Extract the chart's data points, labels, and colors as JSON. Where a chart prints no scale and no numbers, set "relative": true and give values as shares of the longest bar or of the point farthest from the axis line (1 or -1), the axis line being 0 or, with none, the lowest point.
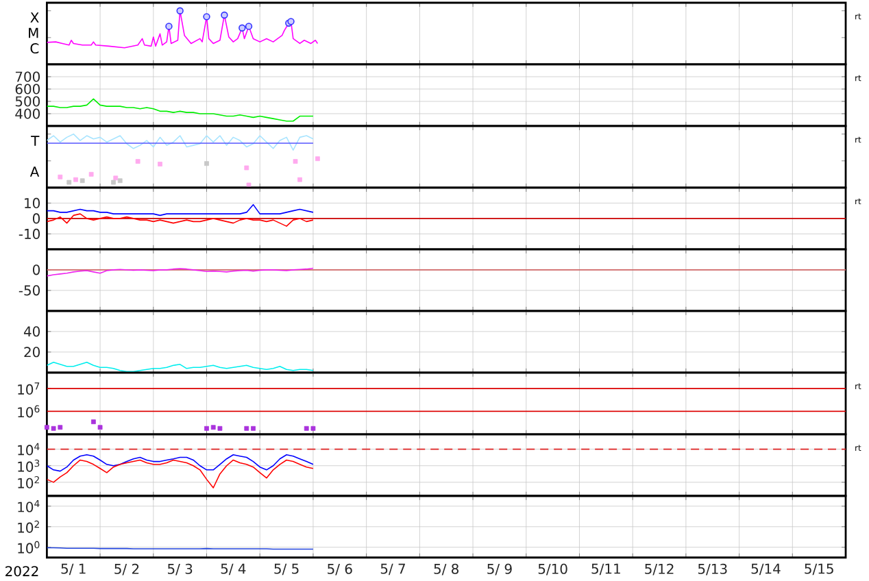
{
  "chart_data": [
    {
      "type": "line",
      "relative": true,
      "grid": "x",
      "tick_labels": "y",
      "annotations": [
        "X",
        "M",
        "C",
        "rt"
      ],
      "xlim": [
        "2022-05-01",
        "2022-05-16"
      ],
      "xticks": [
        {
          "value": "2022-05-01",
          "label": null
        },
        {
          "value": "2022-05-02",
          "label": null
        },
        {
          "value": "2022-05-03",
          "label": null
        },
        {
          "value": "2022-05-04",
          "label": null
        },
        {
          "value": "2022-05-05",
          "label": null
        },
        {
          "value": "2022-05-06",
          "label": null
        },
        {
          "value": "2022-05-07",
          "label": null
        },
        {
          "value": "2022-05-08",
          "label": null
        },
        {
          "value": "2022-05-09",
          "label": null
        },
        {
          "value": "2022-05-10",
          "label": null
        },
        {
          "value": "2022-05-11",
          "label": null
        },
        {
          "value": "2022-05-12",
          "label": null
        },
        {
          "value": "2022-05-13",
          "label": null
        },
        {
          "value": "2022-05-14",
          "label": null
        },
        {
          "value": "2022-05-15",
          "label": null
        },
        {
          "value": "2022-05-16",
          "label": null
        }
      ],
      "series": [
        {
          "color": "#ff00ff",
          "x": [
            "2022-05-01T00:00",
            "2022-05-01T04:00",
            "2022-05-01T07:00",
            "2022-05-01T10:00",
            "2022-05-01T11:00",
            "2022-05-01T12:00",
            "2022-05-01T16:00",
            "2022-05-01T20:00",
            "2022-05-01T21:00",
            "2022-05-01T22:00",
            "2022-05-02T04:00",
            "2022-05-02T11:00",
            "2022-05-02T17:00",
            "2022-05-02T19:00",
            "2022-05-02T20:00",
            "2022-05-02T23:00",
            "2022-05-03T00:00",
            "2022-05-03T01:00",
            "2022-05-03T03:00",
            "2022-05-03T04:00",
            "2022-05-03T06:00",
            "2022-05-03T07:00",
            "2022-05-03T08:00",
            "2022-05-03T11:00",
            "2022-05-03T12:00",
            "2022-05-03T14:00",
            "2022-05-03T17:00",
            "2022-05-03T21:00",
            "2022-05-03T22:00",
            "2022-05-04T00:00",
            "2022-05-04T01:00",
            "2022-05-04T03:00",
            "2022-05-04T06:00",
            "2022-05-04T08:00",
            "2022-05-04T10:00",
            "2022-05-04T12:00",
            "2022-05-04T14:00",
            "2022-05-04T16:00",
            "2022-05-04T17:00",
            "2022-05-04T19:00",
            "2022-05-04T21:00",
            "2022-05-05T00:00",
            "2022-05-05T03:00",
            "2022-05-05T06:00",
            "2022-05-05T10:00",
            "2022-05-05T11:00",
            "2022-05-05T13:00",
            "2022-05-05T14:00",
            "2022-05-05T15:00",
            "2022-05-05T18:00",
            "2022-05-05T20:00",
            "2022-05-05T23:00",
            "2022-05-06T01:00",
            "2022-05-06T02:00"
          ],
          "values": [
            0.41,
            0.42,
            0.39,
            0.36,
            0.45,
            0.39,
            0.36,
            0.36,
            0.42,
            0.36,
            0.34,
            0.31,
            0.36,
            0.48,
            0.36,
            0.34,
            0.51,
            0.34,
            0.57,
            0.36,
            0.42,
            0.71,
            0.39,
            0.45,
            1,
            0.54,
            0.39,
            0.48,
            0.42,
            0.89,
            0.48,
            0.39,
            0.45,
            0.92,
            0.51,
            0.42,
            0.48,
            0.68,
            0.48,
            0.71,
            0.48,
            0.42,
            0.48,
            0.42,
            0.54,
            0.63,
            0.77,
            0.8,
            0.48,
            0.39,
            0.45,
            0.39,
            0.45,
            0.39
          ]
        },
        {
          "type": "scatter",
          "marker": "circle",
          "color": "#3333ff",
          "x": [
            "2022-05-03T07:00",
            "2022-05-03T12:00",
            "2022-05-04T00:00",
            "2022-05-04T08:00",
            "2022-05-04T16:00",
            "2022-05-04T19:00",
            "2022-05-05T13:00",
            "2022-05-05T14:00"
          ],
          "values": [
            0.71,
            1,
            0.89,
            0.92,
            0.68,
            0.71,
            0.77,
            0.8
          ]
        }
      ]
    },
    {
      "type": "line",
      "grid": true,
      "tick_labels": "y",
      "annotations": [
        "rt"
      ],
      "xlim": [
        "2022-05-01",
        "2022-05-16"
      ],
      "xticks": [
        {
          "value": "2022-05-01",
          "label": null
        },
        {
          "value": "2022-05-02",
          "label": null
        },
        {
          "value": "2022-05-03",
          "label": null
        },
        {
          "value": "2022-05-04",
          "label": null
        },
        {
          "value": "2022-05-05",
          "label": null
        },
        {
          "value": "2022-05-06",
          "label": null
        },
        {
          "value": "2022-05-07",
          "label": null
        },
        {
          "value": "2022-05-08",
          "label": null
        },
        {
          "value": "2022-05-09",
          "label": null
        },
        {
          "value": "2022-05-10",
          "label": null
        },
        {
          "value": "2022-05-11",
          "label": null
        },
        {
          "value": "2022-05-12",
          "label": null
        },
        {
          "value": "2022-05-13",
          "label": null
        },
        {
          "value": "2022-05-14",
          "label": null
        },
        {
          "value": "2022-05-15",
          "label": null
        },
        {
          "value": "2022-05-16",
          "label": null
        }
      ],
      "x": [
        "2022-05-01T00:00",
        "2022-05-01T03:00",
        "2022-05-01T06:00",
        "2022-05-01T09:00",
        "2022-05-01T12:00",
        "2022-05-01T15:00",
        "2022-05-01T18:00",
        "2022-05-01T21:00",
        "2022-05-02T00:00",
        "2022-05-02T03:00",
        "2022-05-02T06:00",
        "2022-05-02T09:00",
        "2022-05-02T12:00",
        "2022-05-02T15:00",
        "2022-05-02T18:00",
        "2022-05-02T21:00",
        "2022-05-03T00:00",
        "2022-05-03T03:00",
        "2022-05-03T06:00",
        "2022-05-03T09:00",
        "2022-05-03T12:00",
        "2022-05-03T15:00",
        "2022-05-03T18:00",
        "2022-05-03T21:00",
        "2022-05-04T00:00",
        "2022-05-04T03:00",
        "2022-05-04T06:00",
        "2022-05-04T09:00",
        "2022-05-04T12:00",
        "2022-05-04T15:00",
        "2022-05-04T18:00",
        "2022-05-04T21:00",
        "2022-05-05T00:00",
        "2022-05-05T03:00",
        "2022-05-05T06:00",
        "2022-05-05T09:00",
        "2022-05-05T12:00",
        "2022-05-05T15:00",
        "2022-05-05T18:00",
        "2022-05-05T21:00",
        "2022-05-06T00:00"
      ],
      "ylim": [
        300,
        800
      ],
      "yticks": [
        700,
        600,
        500,
        400
      ],
      "series": [
        {
          "color": "#00ee00",
          "values": [
            460,
            460,
            450,
            450,
            460,
            460,
            470,
            520,
            470,
            460,
            460,
            460,
            450,
            450,
            440,
            450,
            440,
            420,
            420,
            410,
            420,
            410,
            410,
            400,
            400,
            400,
            390,
            380,
            380,
            390,
            380,
            370,
            380,
            370,
            360,
            350,
            340,
            340,
            380,
            380,
            380
          ]
        }
      ]
    },
    {
      "type": "line",
      "relative": true,
      "grid": "x",
      "tick_labels": "y",
      "annotations": [
        "T",
        "A",
        "rt"
      ],
      "xlim": [
        "2022-05-01",
        "2022-05-16"
      ],
      "xticks": [
        {
          "value": "2022-05-01",
          "label": null
        },
        {
          "value": "2022-05-02",
          "label": null
        },
        {
          "value": "2022-05-03",
          "label": null
        },
        {
          "value": "2022-05-04",
          "label": null
        },
        {
          "value": "2022-05-05",
          "label": null
        },
        {
          "value": "2022-05-06",
          "label": null
        },
        {
          "value": "2022-05-07",
          "label": null
        },
        {
          "value": "2022-05-08",
          "label": null
        },
        {
          "value": "2022-05-09",
          "label": null
        },
        {
          "value": "2022-05-10",
          "label": null
        },
        {
          "value": "2022-05-11",
          "label": null
        },
        {
          "value": "2022-05-12",
          "label": null
        },
        {
          "value": "2022-05-13",
          "label": null
        },
        {
          "value": "2022-05-14",
          "label": null
        },
        {
          "value": "2022-05-15",
          "label": null
        },
        {
          "value": "2022-05-16",
          "label": null
        }
      ],
      "x": [
        "2022-05-01T00:00",
        "2022-05-01T03:00",
        "2022-05-01T06:00",
        "2022-05-01T09:00",
        "2022-05-01T12:00",
        "2022-05-01T15:00",
        "2022-05-01T18:00",
        "2022-05-01T21:00",
        "2022-05-02T00:00",
        "2022-05-02T03:00",
        "2022-05-02T06:00",
        "2022-05-02T09:00",
        "2022-05-02T12:00",
        "2022-05-02T15:00",
        "2022-05-02T18:00",
        "2022-05-02T21:00",
        "2022-05-03T00:00",
        "2022-05-03T03:00",
        "2022-05-03T06:00",
        "2022-05-03T09:00",
        "2022-05-03T12:00",
        "2022-05-03T15:00",
        "2022-05-03T18:00",
        "2022-05-03T21:00",
        "2022-05-04T00:00",
        "2022-05-04T03:00",
        "2022-05-04T06:00",
        "2022-05-04T09:00",
        "2022-05-04T12:00",
        "2022-05-04T15:00",
        "2022-05-04T18:00",
        "2022-05-04T21:00",
        "2022-05-05T00:00",
        "2022-05-05T03:00",
        "2022-05-05T06:00",
        "2022-05-05T09:00",
        "2022-05-05T12:00",
        "2022-05-05T15:00",
        "2022-05-05T18:00",
        "2022-05-05T21:00",
        "2022-05-06T00:00"
      ],
      "series": [
        {
          "color": "#a8e4ff",
          "values": [
            0.88,
            0.97,
            0.85,
            0.94,
            1,
            0.88,
            0.97,
            0.91,
            0.94,
            0.85,
            0.91,
            0.97,
            0.82,
            0.73,
            0.79,
            0.88,
            0.76,
            0.94,
            0.79,
            0.85,
            0.97,
            0.76,
            0.79,
            0.82,
            0.97,
            0.85,
            0.97,
            0.79,
            0.94,
            0.88,
            0.76,
            0.82,
            0.97,
            0.85,
            0.73,
            0.88,
            0.94,
            0.7,
            0.94,
            0.97,
            0.91
          ]
        },
        {
          "color": "#5555ff",
          "x": [
            "2022-05-01T00:00",
            "2022-05-06T00:00"
          ],
          "values": [
            0.83,
            0.83
          ]
        },
        {
          "type": "scatter",
          "marker": "square",
          "color": "#ffaaee",
          "x": [
            "2022-05-01T06:00",
            "2022-05-01T13:00",
            "2022-05-01T20:00",
            "2022-05-02T07:00",
            "2022-05-02T17:00",
            "2022-05-03T03:00",
            "2022-05-04T18:00",
            "2022-05-04T19:00",
            "2022-05-05T16:00",
            "2022-05-05T18:00",
            "2022-05-06T02:00"
          ],
          "values": [
            0.2,
            0.15,
            0.25,
            0.18,
            0.49,
            0.44,
            0.37,
            0.05,
            0.49,
            0.15,
            0.54
          ]
        },
        {
          "type": "scatter",
          "marker": "square",
          "color": "#c8c8c8",
          "x": [
            "2022-05-01T10:00",
            "2022-05-01T16:00",
            "2022-05-02T06:00",
            "2022-05-02T09:00",
            "2022-05-04T00:00"
          ],
          "values": [
            0.1,
            0.13,
            0.1,
            0.13,
            0.45
          ]
        }
      ]
    },
    {
      "type": "line",
      "grid": true,
      "tick_labels": "y",
      "annotations": [
        "rt"
      ],
      "xlim": [
        "2022-05-01",
        "2022-05-16"
      ],
      "xticks": [
        {
          "value": "2022-05-01",
          "label": null
        },
        {
          "value": "2022-05-02",
          "label": null
        },
        {
          "value": "2022-05-03",
          "label": null
        },
        {
          "value": "2022-05-04",
          "label": null
        },
        {
          "value": "2022-05-05",
          "label": null
        },
        {
          "value": "2022-05-06",
          "label": null
        },
        {
          "value": "2022-05-07",
          "label": null
        },
        {
          "value": "2022-05-08",
          "label": null
        },
        {
          "value": "2022-05-09",
          "label": null
        },
        {
          "value": "2022-05-10",
          "label": null
        },
        {
          "value": "2022-05-11",
          "label": null
        },
        {
          "value": "2022-05-12",
          "label": null
        },
        {
          "value": "2022-05-13",
          "label": null
        },
        {
          "value": "2022-05-14",
          "label": null
        },
        {
          "value": "2022-05-15",
          "label": null
        },
        {
          "value": "2022-05-16",
          "label": null
        }
      ],
      "x": [
        "2022-05-01T00:00",
        "2022-05-01T03:00",
        "2022-05-01T06:00",
        "2022-05-01T09:00",
        "2022-05-01T12:00",
        "2022-05-01T15:00",
        "2022-05-01T18:00",
        "2022-05-01T21:00",
        "2022-05-02T00:00",
        "2022-05-02T03:00",
        "2022-05-02T06:00",
        "2022-05-02T09:00",
        "2022-05-02T12:00",
        "2022-05-02T15:00",
        "2022-05-02T18:00",
        "2022-05-02T21:00",
        "2022-05-03T00:00",
        "2022-05-03T03:00",
        "2022-05-03T06:00",
        "2022-05-03T09:00",
        "2022-05-03T12:00",
        "2022-05-03T15:00",
        "2022-05-03T18:00",
        "2022-05-03T21:00",
        "2022-05-04T00:00",
        "2022-05-04T03:00",
        "2022-05-04T06:00",
        "2022-05-04T09:00",
        "2022-05-04T12:00",
        "2022-05-04T15:00",
        "2022-05-04T18:00",
        "2022-05-04T21:00",
        "2022-05-05T00:00",
        "2022-05-05T03:00",
        "2022-05-05T06:00",
        "2022-05-05T09:00",
        "2022-05-05T12:00",
        "2022-05-05T15:00",
        "2022-05-05T18:00",
        "2022-05-05T21:00",
        "2022-05-06T00:00"
      ],
      "ylim": [
        -20,
        20
      ],
      "yticks": [
        10,
        0,
        -10
      ],
      "ref_lines": [
        {
          "axis": "y",
          "value": 0,
          "color": "#cc0000"
        }
      ],
      "series": [
        {
          "color": "#0000ff",
          "values": [
            5,
            5,
            4,
            4,
            5,
            6,
            5,
            5,
            4,
            4,
            3,
            3,
            3,
            3,
            3,
            3,
            3,
            2,
            3,
            3,
            3,
            3,
            3,
            3,
            3,
            3,
            3,
            3,
            3,
            3,
            4,
            9,
            3,
            3,
            3,
            3,
            4,
            5,
            6,
            5,
            4
          ]
        },
        {
          "color": "#ff0000",
          "values": [
            -2,
            -1,
            1,
            -3,
            2,
            3,
            0,
            -1,
            0,
            1,
            0,
            0,
            1,
            0,
            -1,
            -1,
            -2,
            -1,
            -2,
            -3,
            -2,
            -1,
            -2,
            -2,
            -1,
            0,
            -1,
            -2,
            -3,
            -1,
            0,
            -1,
            -1,
            -2,
            -1,
            -3,
            -5,
            -1,
            0,
            -2,
            -1
          ]
        }
      ]
    },
    {
      "type": "line",
      "grid": true,
      "tick_labels": "y",
      "xlim": [
        "2022-05-01",
        "2022-05-16"
      ],
      "xticks": [
        {
          "value": "2022-05-01",
          "label": null
        },
        {
          "value": "2022-05-02",
          "label": null
        },
        {
          "value": "2022-05-03",
          "label": null
        },
        {
          "value": "2022-05-04",
          "label": null
        },
        {
          "value": "2022-05-05",
          "label": null
        },
        {
          "value": "2022-05-06",
          "label": null
        },
        {
          "value": "2022-05-07",
          "label": null
        },
        {
          "value": "2022-05-08",
          "label": null
        },
        {
          "value": "2022-05-09",
          "label": null
        },
        {
          "value": "2022-05-10",
          "label": null
        },
        {
          "value": "2022-05-11",
          "label": null
        },
        {
          "value": "2022-05-12",
          "label": null
        },
        {
          "value": "2022-05-13",
          "label": null
        },
        {
          "value": "2022-05-14",
          "label": null
        },
        {
          "value": "2022-05-15",
          "label": null
        },
        {
          "value": "2022-05-16",
          "label": null
        }
      ],
      "x": [
        "2022-05-01T00:00",
        "2022-05-01T03:00",
        "2022-05-01T06:00",
        "2022-05-01T09:00",
        "2022-05-01T12:00",
        "2022-05-01T15:00",
        "2022-05-01T18:00",
        "2022-05-01T21:00",
        "2022-05-02T00:00",
        "2022-05-02T03:00",
        "2022-05-02T06:00",
        "2022-05-02T09:00",
        "2022-05-02T12:00",
        "2022-05-02T15:00",
        "2022-05-02T18:00",
        "2022-05-02T21:00",
        "2022-05-03T00:00",
        "2022-05-03T03:00",
        "2022-05-03T06:00",
        "2022-05-03T09:00",
        "2022-05-03T12:00",
        "2022-05-03T15:00",
        "2022-05-03T18:00",
        "2022-05-03T21:00",
        "2022-05-04T00:00",
        "2022-05-04T03:00",
        "2022-05-04T06:00",
        "2022-05-04T09:00",
        "2022-05-04T12:00",
        "2022-05-04T15:00",
        "2022-05-04T18:00",
        "2022-05-04T21:00",
        "2022-05-05T00:00",
        "2022-05-05T03:00",
        "2022-05-05T06:00",
        "2022-05-05T09:00",
        "2022-05-05T12:00",
        "2022-05-05T15:00",
        "2022-05-05T18:00",
        "2022-05-05T21:00",
        "2022-05-06T00:00"
      ],
      "ylim": [
        -100,
        50
      ],
      "yticks": [
        0,
        -50
      ],
      "ref_lines": [
        {
          "axis": "y",
          "value": 0,
          "color": "#d06868"
        }
      ],
      "series": [
        {
          "color": "#ee22ee",
          "values": [
            -15,
            -12,
            -10,
            -8,
            -5,
            -3,
            -2,
            -5,
            -8,
            -2,
            0,
            1,
            0,
            -1,
            0,
            -1,
            -2,
            0,
            0,
            2,
            3,
            2,
            0,
            -2,
            -4,
            -3,
            -4,
            -5,
            -3,
            -2,
            -1,
            -3,
            -1,
            0,
            0,
            -1,
            -2,
            0,
            1,
            2,
            4
          ]
        }
      ]
    },
    {
      "type": "line",
      "grid": true,
      "tick_labels": "y",
      "xlim": [
        "2022-05-01",
        "2022-05-16"
      ],
      "xticks": [
        {
          "value": "2022-05-01",
          "label": null
        },
        {
          "value": "2022-05-02",
          "label": null
        },
        {
          "value": "2022-05-03",
          "label": null
        },
        {
          "value": "2022-05-04",
          "label": null
        },
        {
          "value": "2022-05-05",
          "label": null
        },
        {
          "value": "2022-05-06",
          "label": null
        },
        {
          "value": "2022-05-07",
          "label": null
        },
        {
          "value": "2022-05-08",
          "label": null
        },
        {
          "value": "2022-05-09",
          "label": null
        },
        {
          "value": "2022-05-10",
          "label": null
        },
        {
          "value": "2022-05-11",
          "label": null
        },
        {
          "value": "2022-05-12",
          "label": null
        },
        {
          "value": "2022-05-13",
          "label": null
        },
        {
          "value": "2022-05-14",
          "label": null
        },
        {
          "value": "2022-05-15",
          "label": null
        },
        {
          "value": "2022-05-16",
          "label": null
        }
      ],
      "x": [
        "2022-05-01T00:00",
        "2022-05-01T03:00",
        "2022-05-01T06:00",
        "2022-05-01T09:00",
        "2022-05-01T12:00",
        "2022-05-01T15:00",
        "2022-05-01T18:00",
        "2022-05-01T21:00",
        "2022-05-02T00:00",
        "2022-05-02T03:00",
        "2022-05-02T06:00",
        "2022-05-02T09:00",
        "2022-05-02T12:00",
        "2022-05-02T15:00",
        "2022-05-02T18:00",
        "2022-05-02T21:00",
        "2022-05-03T00:00",
        "2022-05-03T03:00",
        "2022-05-03T06:00",
        "2022-05-03T09:00",
        "2022-05-03T12:00",
        "2022-05-03T15:00",
        "2022-05-03T18:00",
        "2022-05-03T21:00",
        "2022-05-04T00:00",
        "2022-05-04T03:00",
        "2022-05-04T06:00",
        "2022-05-04T09:00",
        "2022-05-04T12:00",
        "2022-05-04T15:00",
        "2022-05-04T18:00",
        "2022-05-04T21:00",
        "2022-05-05T00:00",
        "2022-05-05T03:00",
        "2022-05-05T06:00",
        "2022-05-05T09:00",
        "2022-05-05T12:00",
        "2022-05-05T15:00",
        "2022-05-05T18:00",
        "2022-05-05T21:00",
        "2022-05-06T00:00"
      ],
      "ylim": [
        0,
        60
      ],
      "yticks": [
        40,
        20
      ],
      "series": [
        {
          "color": "#00eeee",
          "values": [
            7,
            10,
            8,
            6,
            6,
            8,
            10,
            7,
            5,
            5,
            4,
            2,
            1,
            1,
            2,
            3,
            4,
            4,
            5,
            7,
            8,
            4,
            5,
            5,
            6,
            7,
            5,
            4,
            5,
            6,
            7,
            5,
            4,
            3,
            4,
            6,
            3,
            2,
            3,
            3,
            2
          ]
        }
      ]
    },
    {
      "type": "line",
      "log": "y",
      "grid": true,
      "tick_labels": "y",
      "annotations": [
        "rt"
      ],
      "xlim": [
        "2022-05-01",
        "2022-05-16"
      ],
      "xticks": [
        {
          "value": "2022-05-01",
          "label": null
        },
        {
          "value": "2022-05-02",
          "label": null
        },
        {
          "value": "2022-05-03",
          "label": null
        },
        {
          "value": "2022-05-04",
          "label": null
        },
        {
          "value": "2022-05-05",
          "label": null
        },
        {
          "value": "2022-05-06",
          "label": null
        },
        {
          "value": "2022-05-07",
          "label": null
        },
        {
          "value": "2022-05-08",
          "label": null
        },
        {
          "value": "2022-05-09",
          "label": null
        },
        {
          "value": "2022-05-10",
          "label": null
        },
        {
          "value": "2022-05-11",
          "label": null
        },
        {
          "value": "2022-05-12",
          "label": null
        },
        {
          "value": "2022-05-13",
          "label": null
        },
        {
          "value": "2022-05-14",
          "label": null
        },
        {
          "value": "2022-05-15",
          "label": null
        },
        {
          "value": "2022-05-16",
          "label": null
        }
      ],
      "x": [
        "2022-05-01T00:00",
        "2022-05-01T03:00",
        "2022-05-01T06:00",
        "2022-05-01T09:00",
        "2022-05-01T12:00",
        "2022-05-01T15:00",
        "2022-05-01T18:00",
        "2022-05-01T21:00",
        "2022-05-02T00:00",
        "2022-05-02T03:00",
        "2022-05-02T06:00",
        "2022-05-02T09:00",
        "2022-05-02T12:00",
        "2022-05-02T15:00",
        "2022-05-02T18:00",
        "2022-05-02T21:00",
        "2022-05-03T00:00",
        "2022-05-03T03:00",
        "2022-05-03T06:00",
        "2022-05-03T09:00",
        "2022-05-03T12:00",
        "2022-05-03T15:00",
        "2022-05-03T18:00",
        "2022-05-03T21:00",
        "2022-05-04T00:00",
        "2022-05-04T03:00",
        "2022-05-04T06:00",
        "2022-05-04T09:00",
        "2022-05-04T12:00",
        "2022-05-04T15:00",
        "2022-05-04T18:00",
        "2022-05-04T21:00",
        "2022-05-05T00:00",
        "2022-05-05T03:00",
        "2022-05-05T06:00",
        "2022-05-05T09:00",
        "2022-05-05T12:00",
        "2022-05-05T15:00",
        "2022-05-05T18:00",
        "2022-05-05T21:00",
        "2022-05-06T00:00"
      ],
      "ylim": [
        100000,
        50000000
      ],
      "yticks": [
        {
          "value": 10000000,
          "label": "10$^{7}$"
        },
        {
          "value": 1000000,
          "label": "10$^{6}$"
        }
      ],
      "ref_lines": [
        {
          "axis": "y",
          "value": 10000000,
          "color": "#dd0000"
        },
        {
          "axis": "y",
          "value": 1000000,
          "color": "#dd0000"
        }
      ],
      "series": [
        {
          "type": "scatter",
          "marker": "square",
          "color": "#aa33dd",
          "values": [
            200000,
            180000,
            200000,
            null,
            null,
            null,
            null,
            350000,
            200000,
            null,
            null,
            null,
            null,
            null,
            null,
            null,
            null,
            null,
            null,
            null,
            null,
            null,
            null,
            null,
            180000,
            200000,
            180000,
            null,
            null,
            null,
            180000,
            180000,
            null,
            null,
            null,
            null,
            null,
            null,
            null,
            180000,
            180000
          ]
        }
      ]
    },
    {
      "type": "line",
      "log": "y",
      "grid": true,
      "tick_labels": "y",
      "annotations": [
        "rt"
      ],
      "xlim": [
        "2022-05-01",
        "2022-05-16"
      ],
      "xticks": [
        {
          "value": "2022-05-01",
          "label": null
        },
        {
          "value": "2022-05-02",
          "label": null
        },
        {
          "value": "2022-05-03",
          "label": null
        },
        {
          "value": "2022-05-04",
          "label": null
        },
        {
          "value": "2022-05-05",
          "label": null
        },
        {
          "value": "2022-05-06",
          "label": null
        },
        {
          "value": "2022-05-07",
          "label": null
        },
        {
          "value": "2022-05-08",
          "label": null
        },
        {
          "value": "2022-05-09",
          "label": null
        },
        {
          "value": "2022-05-10",
          "label": null
        },
        {
          "value": "2022-05-11",
          "label": null
        },
        {
          "value": "2022-05-12",
          "label": null
        },
        {
          "value": "2022-05-13",
          "label": null
        },
        {
          "value": "2022-05-14",
          "label": null
        },
        {
          "value": "2022-05-15",
          "label": null
        },
        {
          "value": "2022-05-16",
          "label": null
        }
      ],
      "x": [
        "2022-05-01T00:00",
        "2022-05-01T03:00",
        "2022-05-01T06:00",
        "2022-05-01T09:00",
        "2022-05-01T12:00",
        "2022-05-01T15:00",
        "2022-05-01T18:00",
        "2022-05-01T21:00",
        "2022-05-02T00:00",
        "2022-05-02T03:00",
        "2022-05-02T06:00",
        "2022-05-02T09:00",
        "2022-05-02T12:00",
        "2022-05-02T15:00",
        "2022-05-02T18:00",
        "2022-05-02T21:00",
        "2022-05-03T00:00",
        "2022-05-03T03:00",
        "2022-05-03T06:00",
        "2022-05-03T09:00",
        "2022-05-03T12:00",
        "2022-05-03T15:00",
        "2022-05-03T18:00",
        "2022-05-03T21:00",
        "2022-05-04T00:00",
        "2022-05-04T03:00",
        "2022-05-04T06:00",
        "2022-05-04T09:00",
        "2022-05-04T12:00",
        "2022-05-04T15:00",
        "2022-05-04T18:00",
        "2022-05-04T21:00",
        "2022-05-05T00:00",
        "2022-05-05T03:00",
        "2022-05-05T06:00",
        "2022-05-05T09:00",
        "2022-05-05T12:00",
        "2022-05-05T15:00",
        "2022-05-05T18:00",
        "2022-05-05T21:00",
        "2022-05-06T00:00"
      ],
      "ylim": [
        15,
        80000
      ],
      "yticks": [
        {
          "value": 10000,
          "label": "10$^{4}$"
        },
        {
          "value": 1000,
          "label": "10$^{3}$"
        },
        {
          "value": 100,
          "label": "10$^{2}$"
        }
      ],
      "ref_lines": [
        {
          "axis": "y",
          "value": 10000,
          "color": "#dd2222",
          "line_style": "dashed"
        }
      ],
      "series": [
        {
          "color": "#0000ff",
          "values": [
            1000,
            560,
            470,
            830,
            2200,
            3800,
            4600,
            3800,
            2200,
            1200,
            1000,
            1200,
            1800,
            2600,
            3200,
            2200,
            1800,
            1800,
            2200,
            2600,
            3200,
            3200,
            2200,
            1000,
            560,
            560,
            1200,
            2600,
            4600,
            3800,
            3200,
            1800,
            830,
            560,
            1000,
            2600,
            4600,
            3800,
            2600,
            1800,
            1200
          ]
        },
        {
          "color": "#ff0000",
          "values": [
            150,
            100,
            210,
            380,
            1000,
            2200,
            1800,
            1200,
            680,
            380,
            830,
            1200,
            1500,
            1800,
            2200,
            1500,
            1200,
            1200,
            1500,
            2200,
            1800,
            1500,
            1000,
            560,
            150,
            46,
            320,
            1000,
            2200,
            1500,
            1200,
            830,
            380,
            180,
            560,
            1200,
            2200,
            1800,
            1200,
            830,
            680
          ]
        }
      ]
    },
    {
      "type": "line",
      "log": "y",
      "grid": true,
      "annotations": [
        "2022"
      ],
      "xlim": [
        "2022-05-01",
        "2022-05-16"
      ],
      "xticks": [
        {
          "value": "2022-05-01",
          "label": null
        },
        {
          "value": "2022-05-01T12:00",
          "label": "5/ 1"
        },
        {
          "value": "2022-05-02",
          "label": null
        },
        {
          "value": "2022-05-02T12:00",
          "label": "5/ 2"
        },
        {
          "value": "2022-05-03",
          "label": null
        },
        {
          "value": "2022-05-03T12:00",
          "label": "5/ 3"
        },
        {
          "value": "2022-05-04",
          "label": null
        },
        {
          "value": "2022-05-04T12:00",
          "label": "5/ 4"
        },
        {
          "value": "2022-05-05",
          "label": null
        },
        {
          "value": "2022-05-05T12:00",
          "label": "5/ 5"
        },
        {
          "value": "2022-05-06",
          "label": null
        },
        {
          "value": "2022-05-06T12:00",
          "label": "5/ 6"
        },
        {
          "value": "2022-05-07",
          "label": null
        },
        {
          "value": "2022-05-07T12:00",
          "label": "5/ 7"
        },
        {
          "value": "2022-05-08",
          "label": null
        },
        {
          "value": "2022-05-08T12:00",
          "label": "5/ 8"
        },
        {
          "value": "2022-05-09",
          "label": null
        },
        {
          "value": "2022-05-09T12:00",
          "label": "5/ 9"
        },
        {
          "value": "2022-05-10",
          "label": null
        },
        {
          "value": "2022-05-10T12:00",
          "label": "5/10"
        },
        {
          "value": "2022-05-11",
          "label": null
        },
        {
          "value": "2022-05-11T12:00",
          "label": "5/11"
        },
        {
          "value": "2022-05-12",
          "label": null
        },
        {
          "value": "2022-05-12T12:00",
          "label": "5/12"
        },
        {
          "value": "2022-05-13",
          "label": null
        },
        {
          "value": "2022-05-13T12:00",
          "label": "5/13"
        },
        {
          "value": "2022-05-14",
          "label": null
        },
        {
          "value": "2022-05-14T12:00",
          "label": "5/14"
        },
        {
          "value": "2022-05-15",
          "label": null
        },
        {
          "value": "2022-05-15T12:00",
          "label": "5/15"
        },
        {
          "value": "2022-05-16",
          "label": null
        }
      ],
      "x": [
        "2022-05-01T00:00",
        "2022-05-01T03:00",
        "2022-05-01T06:00",
        "2022-05-01T09:00",
        "2022-05-01T12:00",
        "2022-05-01T15:00",
        "2022-05-01T18:00",
        "2022-05-01T21:00",
        "2022-05-02T00:00",
        "2022-05-02T03:00",
        "2022-05-02T06:00",
        "2022-05-02T09:00",
        "2022-05-02T12:00",
        "2022-05-02T15:00",
        "2022-05-02T18:00",
        "2022-05-02T21:00",
        "2022-05-03T00:00",
        "2022-05-03T03:00",
        "2022-05-03T06:00",
        "2022-05-03T09:00",
        "2022-05-03T12:00",
        "2022-05-03T15:00",
        "2022-05-03T18:00",
        "2022-05-03T21:00",
        "2022-05-04T00:00",
        "2022-05-04T03:00",
        "2022-05-04T06:00",
        "2022-05-04T09:00",
        "2022-05-04T12:00",
        "2022-05-04T15:00",
        "2022-05-04T18:00",
        "2022-05-04T21:00",
        "2022-05-05T00:00",
        "2022-05-05T03:00",
        "2022-05-05T06:00",
        "2022-05-05T09:00",
        "2022-05-05T12:00",
        "2022-05-05T15:00",
        "2022-05-05T18:00",
        "2022-05-05T21:00",
        "2022-05-06T00:00"
      ],
      "ylim": [
        0.1,
        100000
      ],
      "yticks": [
        {
          "value": 10000,
          "label": "10$^{4}$"
        },
        {
          "value": 100,
          "label": "10$^{2}$"
        },
        {
          "value": 1,
          "label": "10$^{0}$"
        }
      ],
      "series": [
        {
          "color": "#2244dd",
          "values": [
            0.9,
            0.9,
            0.85,
            0.8,
            0.8,
            0.8,
            0.8,
            0.8,
            0.75,
            0.75,
            0.75,
            0.75,
            0.75,
            0.7,
            0.7,
            0.7,
            0.7,
            0.7,
            0.7,
            0.7,
            0.7,
            0.7,
            0.7,
            0.7,
            0.75,
            0.7,
            0.7,
            0.7,
            0.7,
            0.7,
            0.7,
            0.7,
            0.7,
            0.7,
            0.65,
            0.65,
            0.65,
            0.65,
            0.65,
            0.65,
            0.65
          ]
        }
      ]
    }
  ]
}
